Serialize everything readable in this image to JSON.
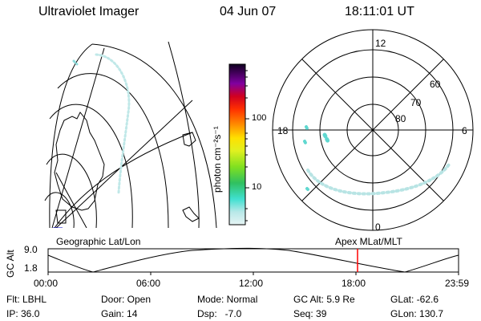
{
  "header": {
    "instrument": "Ultraviolet Imager",
    "date": "04 Jun 07",
    "time": "18:11:01 UT"
  },
  "colorbar": {
    "unit_label": "photon cm⁻²s⁻¹",
    "ticks": [
      "100",
      "10"
    ]
  },
  "polar": {
    "mlt_labels": {
      "top": "12",
      "left": "18",
      "right": "6",
      "bottom": "0"
    },
    "lat_labels": [
      "60",
      "70",
      "80"
    ]
  },
  "panels": {
    "left_caption": "Geographic Lat/Lon",
    "right_caption": "Apex MLat/MLT"
  },
  "altitude_plot": {
    "axis_title": "GC Alt",
    "y_ticks": [
      "9.0",
      "1.8"
    ],
    "x_ticks": [
      "00:00",
      "06:00",
      "12:00",
      "18:00",
      "23:59"
    ],
    "marker_color": "#ff0000"
  },
  "info": {
    "filter": "Flt: LBHL",
    "ip": "IP: 36.0",
    "door": "Door: Open",
    "gain": "Gain: 14",
    "mode": "Mode: Normal",
    "dsp": "Dsp:   -7.0",
    "gc_alt": "GC Alt: 5.9 Re",
    "seq": "Seq: 39",
    "glat": "GLat: -62.6",
    "glon": "GLon: 130.7"
  }
}
